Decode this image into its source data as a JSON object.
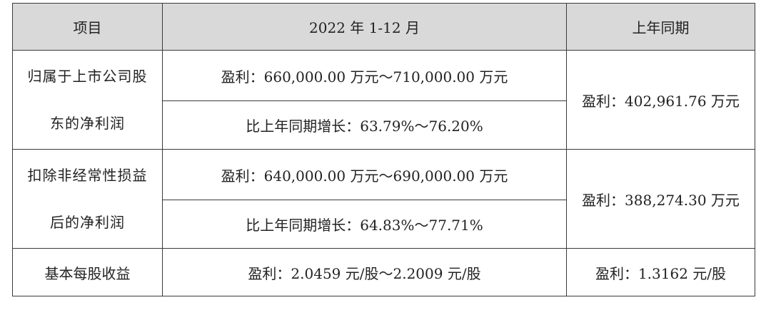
{
  "table": {
    "headers": {
      "item": "项目",
      "period": "2022 年 1-12 月",
      "prior": "上年同期"
    },
    "rows": [
      {
        "label_line1": "归属于上市公司股",
        "label_line2": "东的净利润",
        "estimate": "盈利：660,000.00 万元～710,000.00 万元",
        "growth": "比上年同期增长：63.79%～76.20%",
        "prior": "盈利：402,961.76 万元"
      },
      {
        "label_line1": "扣除非经常性损益",
        "label_line2": "后的净利润",
        "estimate": "盈利：640,000.00 万元～690,000.00 万元",
        "growth": "比上年同期增长：64.83%～77.71%",
        "prior": "盈利：388,274.30 万元"
      },
      {
        "label": "基本每股收益",
        "estimate": "盈利：2.0459 元/股～2.2009 元/股",
        "prior": "盈利：1.3162 元/股"
      }
    ]
  }
}
